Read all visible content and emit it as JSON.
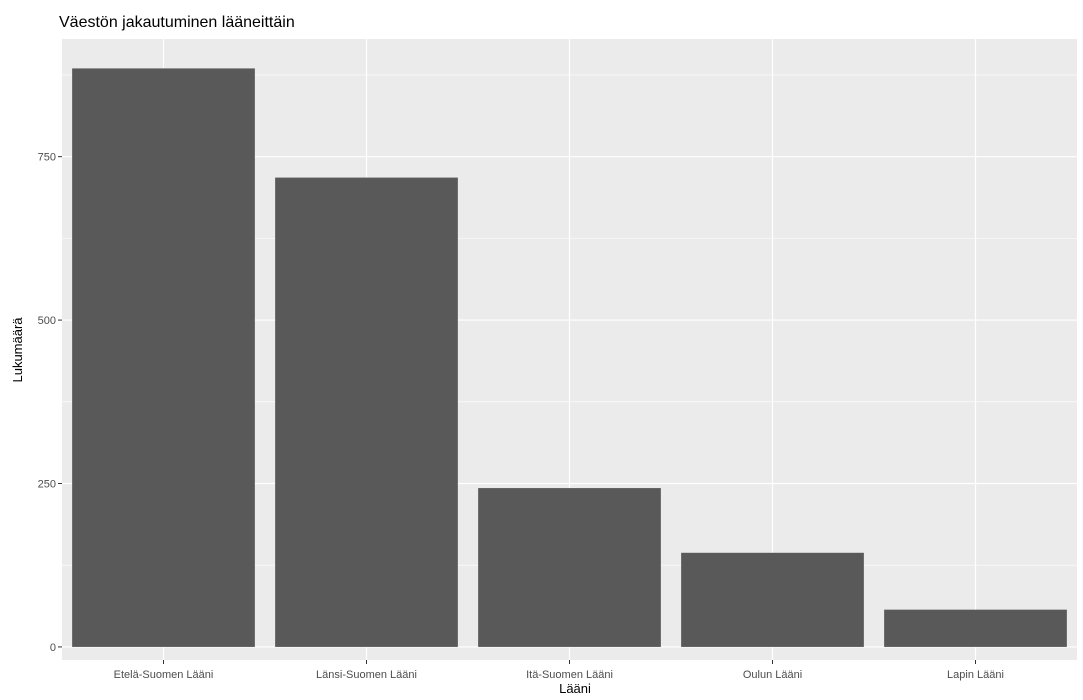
{
  "chart_data": {
    "type": "bar",
    "title": "Väestön jakautuminen lääneittäin",
    "xlabel": "Lääni",
    "ylabel": "Lukumäärä",
    "categories": [
      "Etelä-Suomen Lääni",
      "Länsi-Suomen Lääni",
      "Itä-Suomen Lääni",
      "Oulun Lääni",
      "Lapin Lääni"
    ],
    "values": [
      885,
      718,
      243,
      144,
      57
    ],
    "ylim": [
      -20,
      930
    ],
    "yticks": [
      0,
      250,
      500,
      750
    ],
    "ytick_labels": [
      "0",
      "250",
      "500",
      "750"
    ],
    "grid": true,
    "legend": "none",
    "colors": {
      "bar": "#595959",
      "panel_background": "#ebebeb",
      "gridline": "#ffffff",
      "tick_text": "#4d4d4d"
    }
  }
}
